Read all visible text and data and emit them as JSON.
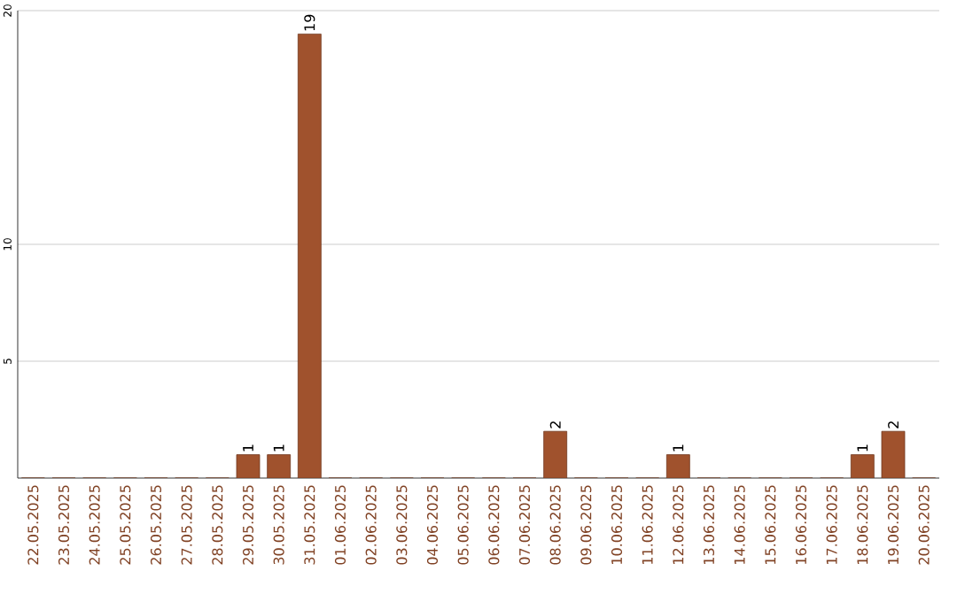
{
  "chart_data": {
    "type": "bar",
    "categories": [
      "22.05.2025",
      "23.05.2025",
      "24.05.2025",
      "25.05.2025",
      "26.05.2025",
      "27.05.2025",
      "28.05.2025",
      "29.05.2025",
      "30.05.2025",
      "31.05.2025",
      "01.06.2025",
      "02.06.2025",
      "03.06.2025",
      "04.06.2025",
      "05.06.2025",
      "06.06.2025",
      "07.06.2025",
      "08.06.2025",
      "09.06.2025",
      "10.06.2025",
      "11.06.2025",
      "12.06.2025",
      "13.06.2025",
      "14.06.2025",
      "15.06.2025",
      "16.06.2025",
      "17.06.2025",
      "18.06.2025",
      "19.06.2025",
      "20.06.2025"
    ],
    "values": [
      0,
      0,
      0,
      0,
      0,
      0,
      0,
      1,
      1,
      19,
      0,
      0,
      0,
      0,
      0,
      0,
      0,
      2,
      0,
      0,
      0,
      1,
      0,
      0,
      0,
      0,
      0,
      1,
      2,
      0
    ],
    "value_labels": [
      null,
      null,
      null,
      null,
      null,
      null,
      null,
      "1",
      "1",
      "19",
      null,
      null,
      null,
      null,
      null,
      null,
      null,
      "2",
      null,
      null,
      null,
      "1",
      null,
      null,
      null,
      null,
      null,
      "1",
      "2",
      null
    ],
    "color": "#a0522d",
    "ylim": [
      0,
      20
    ],
    "yticks": [
      5,
      10,
      20
    ],
    "grid": "y"
  }
}
